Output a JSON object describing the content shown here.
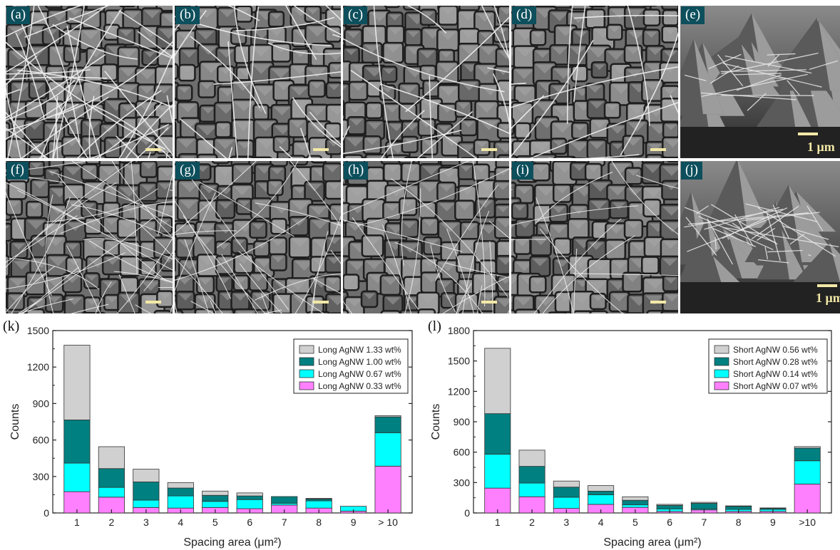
{
  "panels": [
    {
      "label": "(a)",
      "scale_text": ""
    },
    {
      "label": "(b)",
      "scale_text": ""
    },
    {
      "label": "(c)",
      "scale_text": ""
    },
    {
      "label": "(d)",
      "scale_text": ""
    },
    {
      "label": "(e)",
      "scale_text": "1 μm"
    },
    {
      "label": "(f)",
      "scale_text": ""
    },
    {
      "label": "(g)",
      "scale_text": ""
    },
    {
      "label": "(h)",
      "scale_text": ""
    },
    {
      "label": "(i)",
      "scale_text": ""
    },
    {
      "label": "(j)",
      "scale_text": "1 μm"
    }
  ],
  "colors": {
    "label_bg": "#0d4f5c",
    "scale_bar": "#f3e9a6",
    "series": [
      "#ff80ff",
      "#00ffff",
      "#008080",
      "#d0d0d0"
    ]
  },
  "chart_data": [
    {
      "type": "bar",
      "panel_label": "(k)",
      "stacked": true,
      "categories": [
        "1",
        "2",
        "3",
        "4",
        "5",
        "6",
        "7",
        "8",
        "9",
        "> 10"
      ],
      "xlabel": "Spacing area (μm²)",
      "ylabel": "Counts",
      "ylim": [
        0,
        1500
      ],
      "yticks": [
        0,
        300,
        600,
        900,
        1200,
        1500
      ],
      "legend_position": "top-right",
      "series": [
        {
          "name": "Long AgNW 0.33 wt%",
          "values": [
            175,
            130,
            45,
            40,
            45,
            35,
            65,
            40,
            15,
            385
          ]
        },
        {
          "name": "Long AgNW 0.67 wt%",
          "values": [
            235,
            80,
            60,
            100,
            50,
            75,
            15,
            60,
            40,
            275
          ]
        },
        {
          "name": "Long AgNW 1.00 wt%",
          "values": [
            355,
            155,
            150,
            65,
            50,
            30,
            55,
            15,
            0,
            130
          ]
        },
        {
          "name": "Long AgNW 1.33 wt%",
          "values": [
            615,
            180,
            105,
            45,
            35,
            25,
            0,
            5,
            0,
            10
          ]
        }
      ]
    },
    {
      "type": "bar",
      "panel_label": "(l)",
      "stacked": true,
      "categories": [
        "1",
        "2",
        "3",
        "4",
        "5",
        "6",
        "7",
        "8",
        "9",
        ">10"
      ],
      "xlabel": "Spacing area (μm²)",
      "ylabel": "Counts",
      "ylim": [
        0,
        1800
      ],
      "yticks": [
        0,
        300,
        600,
        900,
        1200,
        1500,
        1800
      ],
      "legend_position": "top-right",
      "series": [
        {
          "name": "Short AgNW 0.07 wt%",
          "values": [
            245,
            160,
            45,
            85,
            55,
            15,
            30,
            15,
            15,
            285
          ]
        },
        {
          "name": "Short AgNW 0.14 wt%",
          "values": [
            335,
            135,
            110,
            95,
            25,
            25,
            10,
            20,
            20,
            230
          ]
        },
        {
          "name": "Short AgNW 0.28 wt%",
          "values": [
            400,
            165,
            100,
            35,
            45,
            35,
            55,
            30,
            10,
            125
          ]
        },
        {
          "name": "Short AgNW 0.56 wt%",
          "values": [
            645,
            160,
            60,
            55,
            35,
            10,
            10,
            5,
            5,
            15
          ]
        }
      ]
    }
  ]
}
